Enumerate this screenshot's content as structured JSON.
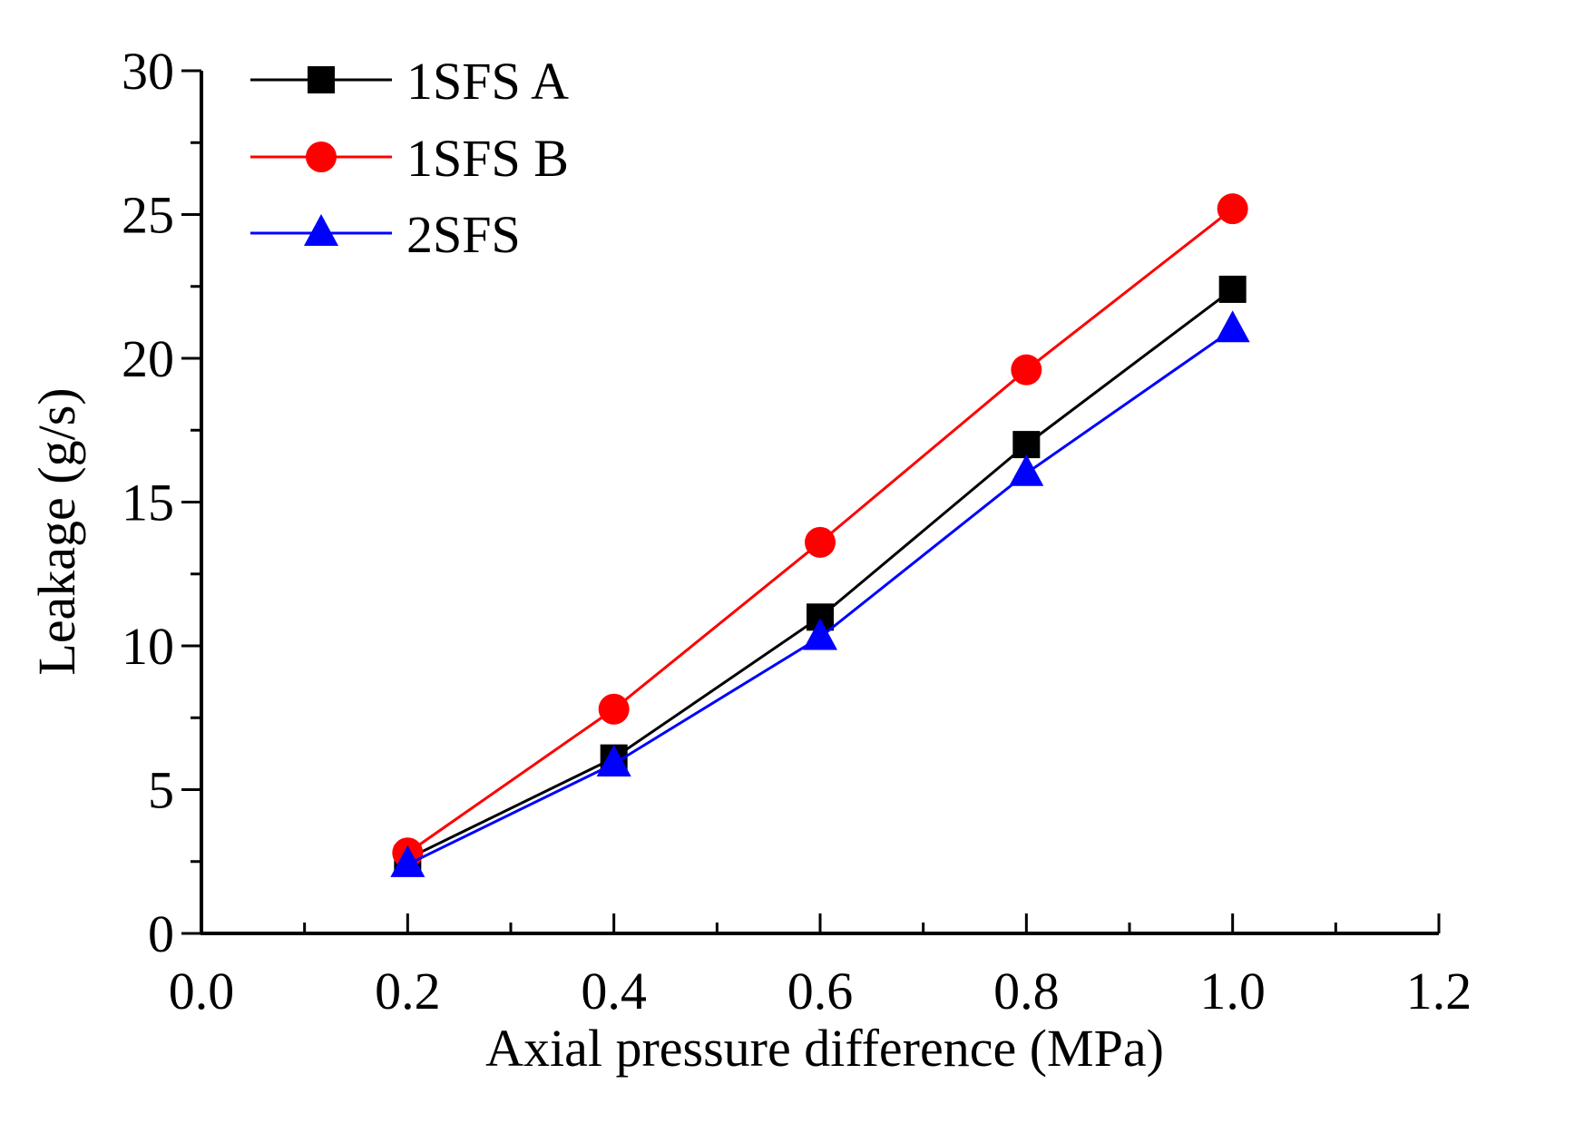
{
  "chart_data": {
    "type": "line",
    "title": "",
    "xlabel": "Axial pressure difference (MPa)",
    "ylabel": "Leakage (g/s)",
    "xlim": [
      0.0,
      1.2
    ],
    "ylim": [
      0,
      30
    ],
    "x_ticks": [
      0.0,
      0.2,
      0.4,
      0.6,
      0.8,
      1.0,
      1.2
    ],
    "x_tick_labels": [
      "0.0",
      "0.2",
      "0.4",
      "0.6",
      "0.8",
      "1.0",
      "1.2"
    ],
    "x_minor_ticks": [
      0.1,
      0.3,
      0.5,
      0.7,
      0.9,
      1.1
    ],
    "y_ticks": [
      0,
      5,
      10,
      15,
      20,
      25,
      30
    ],
    "y_tick_labels": [
      "0",
      "5",
      "10",
      "15",
      "20",
      "25",
      "30"
    ],
    "y_minor_ticks": [
      2.5,
      7.5,
      12.5,
      17.5,
      22.5,
      27.5
    ],
    "grid": false,
    "legend_position": "top-left",
    "x": [
      0.2,
      0.4,
      0.6,
      0.8,
      1.0
    ],
    "series": [
      {
        "name": "1SFS A",
        "marker": "square",
        "color": "#000000",
        "values": [
          2.6,
          6.1,
          11.0,
          17.0,
          22.4
        ]
      },
      {
        "name": "1SFS B",
        "marker": "circle",
        "color": "#ff0000",
        "values": [
          2.8,
          7.8,
          13.6,
          19.6,
          25.2
        ]
      },
      {
        "name": "2SFS",
        "marker": "triangle",
        "color": "#0000ff",
        "values": [
          2.4,
          5.9,
          10.3,
          16.0,
          21.0
        ]
      }
    ]
  }
}
